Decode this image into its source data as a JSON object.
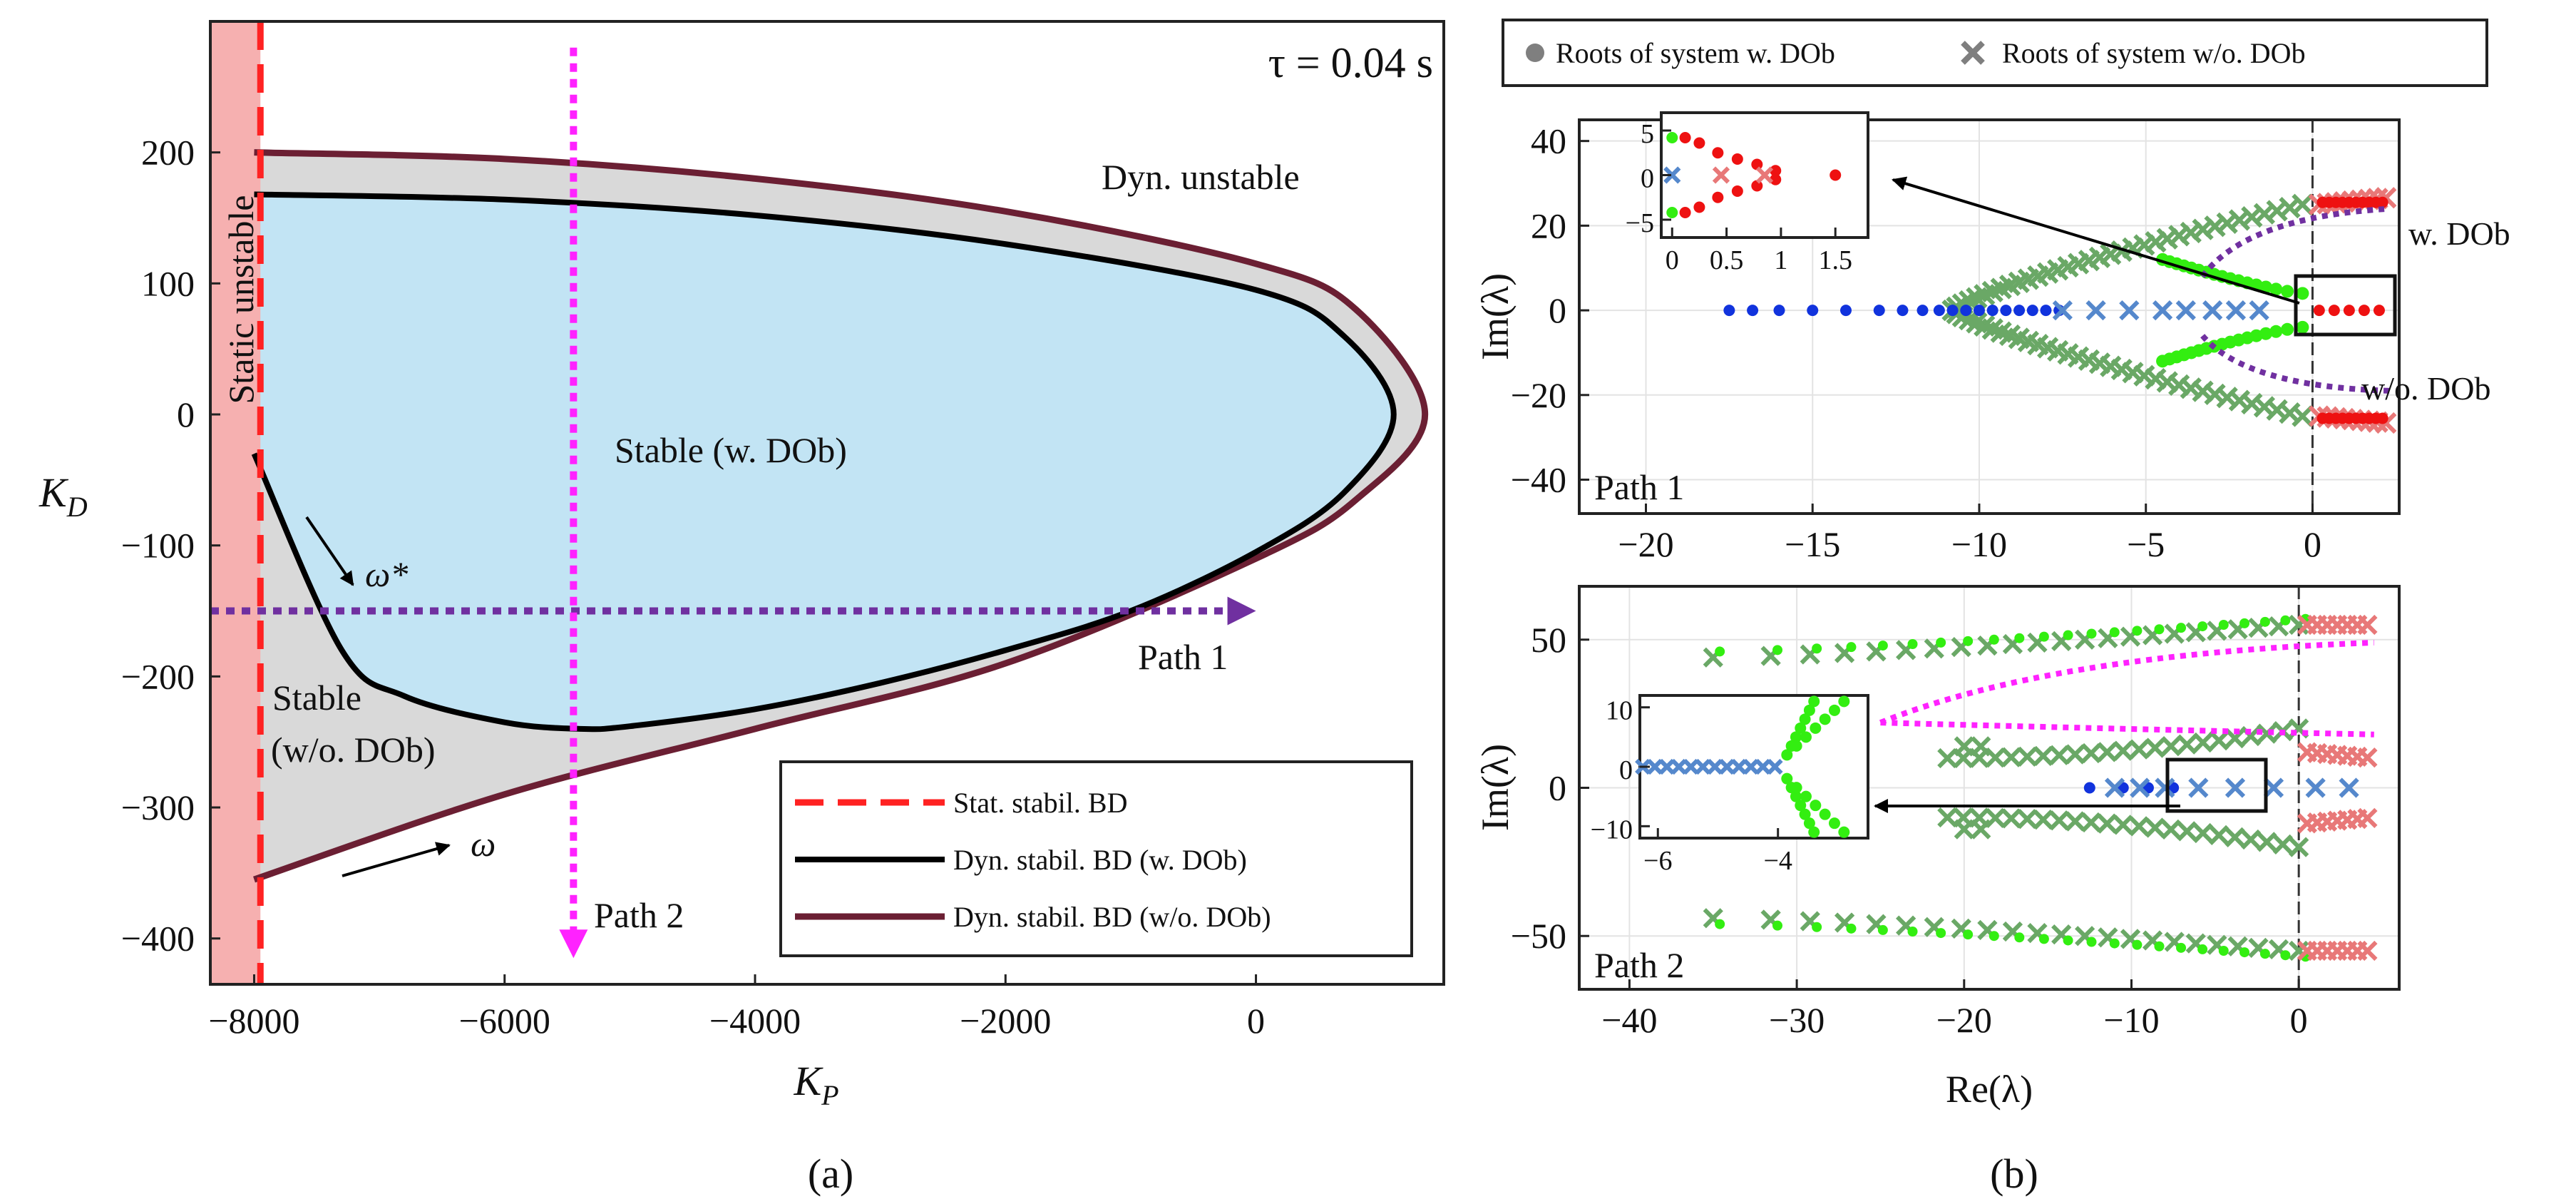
{
  "colors": {
    "stable_wdob": "#c2e4f4",
    "stable_wodob": "#d9d9d9",
    "static_unstable": "#f6b0b0",
    "static_bd": "#ff2222",
    "dyn_bd_wdob": "#000000",
    "dyn_bd_wodob": "#6b1f33",
    "path1": "#7030a0",
    "path2": "#ff22ff",
    "root_wdob_red": "#ee1111",
    "root_wdob_green": "#33ee11",
    "root_wdob_blue": "#1133dd",
    "root_wodob_green": "#6aa866",
    "root_wodob_red": "#e87878",
    "root_wodob_blue": "#5588cc"
  },
  "captions": {
    "a": "(a)",
    "b": "(b)"
  },
  "chart_data": [
    {
      "id": "panel-a",
      "type": "line",
      "title": "τ = 0.04 s",
      "xlabel": "K",
      "xlabel_sub": "P",
      "ylabel": "K",
      "ylabel_sub": "D",
      "xlim": [
        -8350,
        1500
      ],
      "ylim": [
        -435,
        300
      ],
      "xticks": [
        -8000,
        -6000,
        -4000,
        -2000,
        0
      ],
      "xtick_labels": [
        "−8000",
        "−6000",
        "−4000",
        "−2000",
        "0"
      ],
      "yticks": [
        200,
        100,
        0,
        -100,
        -200,
        -300,
        -400
      ],
      "ytick_labels": [
        "200",
        "100",
        "0",
        "−100",
        "−200",
        "−300",
        "−400"
      ],
      "series": [
        {
          "name": "Dyn. stabil. BD (w/o. DOb)",
          "x": [
            -8000,
            -6000,
            -4000,
            -2000,
            0,
            800,
            1350,
            800,
            0,
            -2000,
            -4000,
            -6000,
            -8000
          ],
          "y": [
            200,
            195,
            180,
            155,
            115,
            80,
            0,
            -65,
            -110,
            -190,
            -240,
            -290,
            -355
          ]
        },
        {
          "name": "Dyn. stabil. BD (w. DOb)",
          "x": [
            -8000,
            -6000,
            -4000,
            -2000,
            0,
            700,
            1100,
            700,
            0,
            -1000,
            -2000,
            -3000,
            -4000,
            -5000,
            -5400,
            -6000,
            -6800,
            -7300,
            -8000
          ],
          "y": [
            168,
            164,
            152,
            130,
            95,
            60,
            0,
            -60,
            -105,
            -150,
            -180,
            -205,
            -225,
            -238,
            -240,
            -235,
            -215,
            -180,
            -30
          ]
        },
        {
          "name": "Stat. stabil. BD",
          "x": [
            -7950,
            -7950
          ],
          "y": [
            300,
            -435
          ]
        }
      ],
      "regions": {
        "static_unstable": "Static unstable",
        "dyn_unstable": "Dyn. unstable",
        "stable_wdob": "Stable (w. DOb)",
        "stable_wodob_1": "Stable",
        "stable_wodob_2": "(w/o. DOb)"
      },
      "paths": {
        "path1": {
          "label": "Path 1",
          "y": -150,
          "x_from": -8350,
          "x_to": 0
        },
        "path2": {
          "label": "Path 2",
          "x": -5450,
          "y_from": 280,
          "y_to": -415
        }
      },
      "annotations": {
        "omega_star": "ω*",
        "omega": "ω"
      },
      "legend": {
        "position": "bottom-right",
        "entries": [
          {
            "label": "Stat. stabil. BD",
            "style": "dashed",
            "color_key": "static_bd"
          },
          {
            "label": "Dyn. stabil. BD (w. DOb)",
            "style": "solid",
            "color_key": "dyn_bd_wdob"
          },
          {
            "label": "Dyn. stabil. BD (w/o. DOb)",
            "style": "solid",
            "color_key": "dyn_bd_wodob"
          }
        ]
      }
    },
    {
      "id": "panel-b-top",
      "type": "scatter",
      "xlabel": "",
      "ylabel": "Im(λ)",
      "xlim": [
        -22,
        2.6
      ],
      "ylim": [
        -48,
        45
      ],
      "xticks": [
        -20,
        -15,
        -10,
        -5,
        0
      ],
      "xtick_labels": [
        "−20",
        "−15",
        "−10",
        "−5",
        "0"
      ],
      "yticks": [
        40,
        20,
        0,
        -20,
        -40
      ],
      "ytick_labels": [
        "40",
        "20",
        "0",
        "−20",
        "−40"
      ],
      "label": "Path 1",
      "annotations": {
        "wdob": "w. DOb",
        "wodob": "w/o. DOb"
      },
      "inset": {
        "xlim": [
          -0.1,
          1.8
        ],
        "ylim": [
          -7,
          7
        ],
        "xticks": [
          0,
          0.5,
          1,
          1.5
        ],
        "xtick_labels": [
          "0",
          "0.5",
          "1",
          "1.5"
        ],
        "yticks": [
          5,
          0,
          -5
        ],
        "ytick_labels": [
          "5",
          "0",
          "−5"
        ]
      }
    },
    {
      "id": "panel-b-bottom",
      "type": "scatter",
      "xlabel": "Re(λ)",
      "ylabel": "Im(λ)",
      "xlim": [
        -43,
        6
      ],
      "ylim": [
        -68,
        68
      ],
      "xticks": [
        -40,
        -30,
        -20,
        -10,
        0
      ],
      "xtick_labels": [
        "−40",
        "−30",
        "−20",
        "−10",
        "0"
      ],
      "yticks": [
        50,
        0,
        -50
      ],
      "ytick_labels": [
        "50",
        "0",
        "−50"
      ],
      "label": "Path 2",
      "inset": {
        "xlim": [
          -6.3,
          -2.5
        ],
        "ylim": [
          -12,
          12
        ],
        "xticks": [
          -6,
          -4
        ],
        "xtick_labels": [
          "−6",
          "−4"
        ],
        "yticks": [
          10,
          0,
          -10
        ],
        "ytick_labels": [
          "10",
          "0",
          "−10"
        ]
      }
    }
  ],
  "legend_b": {
    "entries": [
      {
        "label": "Roots of system w. DOb",
        "marker": "circle"
      },
      {
        "label": "Roots of system w/o. DOb",
        "marker": "cross"
      }
    ]
  }
}
